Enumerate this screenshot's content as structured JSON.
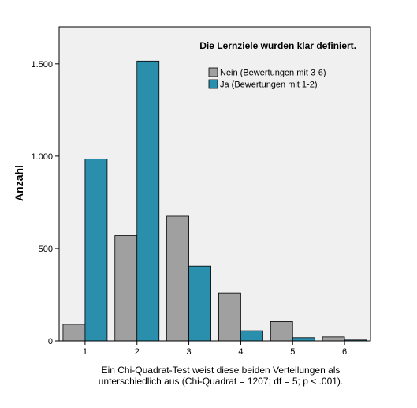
{
  "chart_data": {
    "type": "bar",
    "title": "Die Lernziele wurden klar definiert.",
    "xlabel": "",
    "ylabel": "Anzahl",
    "categories": [
      "1",
      "2",
      "3",
      "4",
      "5",
      "6"
    ],
    "ylim": [
      0,
      1700
    ],
    "yticks": [
      0,
      500,
      1000,
      1500
    ],
    "ytick_labels": [
      "0",
      "500",
      "1.000",
      "1.500"
    ],
    "grid": false,
    "legend_position": "top-right",
    "series": [
      {
        "name": "Nein (Bewertungen mit 3-6)",
        "color": "#a0a0a0",
        "values": [
          90,
          570,
          675,
          260,
          105,
          22
        ]
      },
      {
        "name": "Ja (Bewertungen mit 1-2)",
        "color": "#2a8fad",
        "values": [
          985,
          1515,
          405,
          55,
          18,
          5
        ]
      }
    ]
  },
  "caption": {
    "line1": "Ein Chi-Quadrat-Test weist diese beiden Verteilungen als",
    "line2": "unterschiedlich aus (Chi-Quadrat = 1207; df = 5; p < .001)."
  },
  "colors": {
    "plot_background": "#f0f0f0"
  }
}
